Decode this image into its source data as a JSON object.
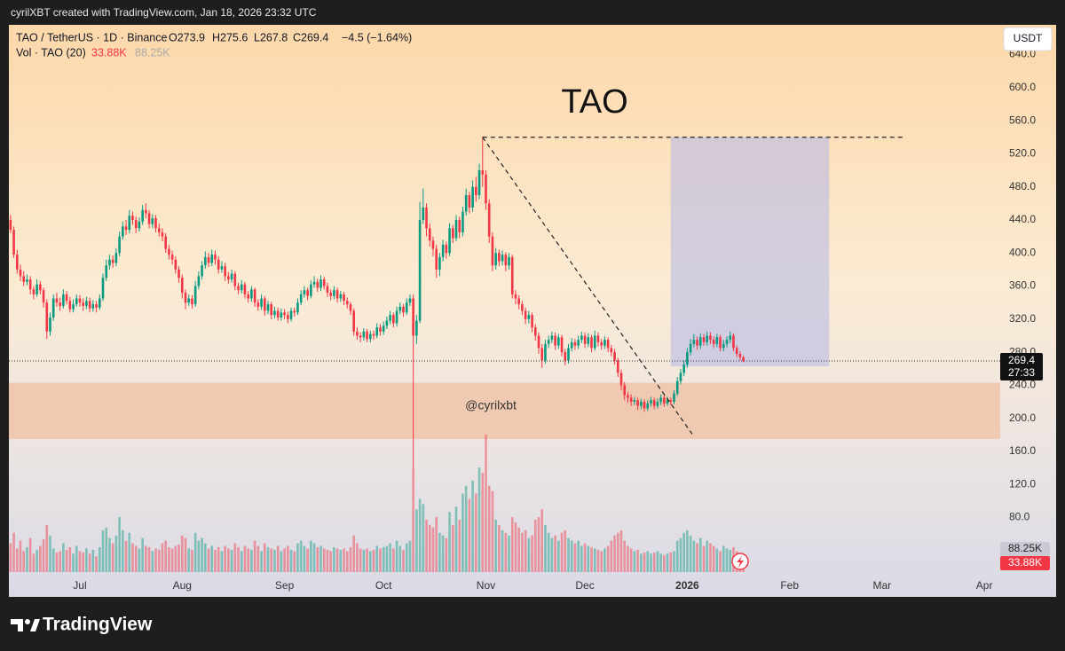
{
  "header": "cyrilXBT created with TradingView.com, Jan 18, 2026 23:32 UTC",
  "footer": "TradingView",
  "chart_data": {
    "type": "candlestick",
    "title": "TAO",
    "symbol": "TAO / TetherUS · 1D · Binance",
    "ohlc_labels": [
      "O273.9",
      "H275.6",
      "L267.8",
      "C269.4",
      "−4.5 (−1.64%)"
    ],
    "volume_title": "Vol · TAO (20)",
    "volume_ma": 88.25,
    "volume_ma_label": "88.25K",
    "volume_last_label": "33.88K",
    "watermark": "@cyrilxbt",
    "currency": "USDT",
    "countdown": "27:33",
    "up_color": "#089981",
    "down_color": "#f23645",
    "grid": false,
    "x": [
      -21,
      -20,
      -19,
      -18,
      -17,
      -16,
      -15,
      -14,
      -13,
      -12,
      -11,
      -10,
      -9,
      -8,
      -7,
      -6,
      -5,
      -4,
      -3,
      -2,
      -1,
      0,
      1,
      2,
      3,
      4,
      5,
      6,
      7,
      8,
      9,
      10,
      11,
      12,
      13,
      14,
      15,
      16,
      17,
      18,
      19,
      20,
      21,
      22,
      23,
      24,
      25,
      26,
      27,
      28,
      29,
      30,
      31,
      32,
      33,
      34,
      35,
      36,
      37,
      38,
      39,
      40,
      41,
      42,
      43,
      44,
      45,
      46,
      47,
      48,
      49,
      50,
      51,
      52,
      53,
      54,
      55,
      56,
      57,
      58,
      59,
      60,
      61,
      62,
      63,
      64,
      65,
      66,
      67,
      68,
      69,
      70,
      71,
      72,
      73,
      74,
      75,
      76,
      77,
      78,
      79,
      80,
      81,
      82,
      83,
      84,
      85,
      86,
      87,
      88,
      89,
      90,
      91,
      92,
      93,
      94,
      95,
      96,
      97,
      98,
      99,
      100,
      101,
      102,
      103,
      104,
      105,
      106,
      107,
      108,
      109,
      110,
      111,
      112,
      113,
      114,
      115,
      116,
      117,
      118,
      119,
      120,
      121,
      122,
      123,
      124,
      125,
      126,
      127,
      128,
      129,
      130,
      131,
      132,
      133,
      134,
      135,
      136,
      137,
      138,
      139,
      140,
      141,
      142,
      143,
      144,
      145,
      146,
      147,
      148,
      149,
      150,
      151,
      152,
      153,
      154,
      155,
      156,
      157,
      158,
      159,
      160,
      161,
      162,
      163,
      164,
      165,
      166,
      167,
      168,
      169,
      170,
      171,
      172,
      173,
      174,
      175,
      176,
      177,
      178,
      179,
      180,
      181,
      182,
      183,
      184,
      185,
      186,
      187,
      188,
      189,
      190,
      191,
      192,
      193,
      194,
      195,
      196,
      197,
      198,
      199,
      200,
      201
    ],
    "open": [
      440,
      428,
      398,
      380,
      372,
      365,
      368,
      356,
      350,
      362,
      355,
      340,
      305,
      322,
      345,
      340,
      336,
      350,
      342,
      332,
      338,
      345,
      340,
      336,
      342,
      333,
      338,
      334,
      345,
      370,
      385,
      392,
      388,
      400,
      420,
      432,
      428,
      445,
      440,
      430,
      438,
      452,
      448,
      435,
      442,
      430,
      425,
      420,
      405,
      398,
      392,
      380,
      370,
      352,
      340,
      345,
      338,
      360,
      372,
      385,
      395,
      388,
      398,
      392,
      380,
      384,
      372,
      368,
      375,
      360,
      355,
      362,
      350,
      345,
      356,
      340,
      335,
      345,
      330,
      338,
      325,
      330,
      322,
      328,
      325,
      320,
      330,
      328,
      340,
      350,
      355,
      348,
      362,
      365,
      358,
      368,
      360,
      352,
      348,
      355,
      345,
      350,
      342,
      338,
      330,
      305,
      300,
      298,
      305,
      296,
      302,
      300,
      310,
      305,
      312,
      318,
      325,
      315,
      330,
      335,
      328,
      340,
      345,
      300,
      318,
      440,
      455,
      430,
      415,
      405,
      380,
      395,
      410,
      400,
      430,
      418,
      440,
      425,
      450,
      470,
      455,
      480,
      470,
      500,
      495,
      460,
      420,
      385,
      400,
      390,
      398,
      385,
      395,
      350,
      345,
      338,
      330,
      320,
      325,
      310,
      300,
      285,
      270,
      290,
      295,
      300,
      288,
      298,
      280,
      270,
      285,
      292,
      288,
      295,
      300,
      290,
      298,
      285,
      300,
      292,
      288,
      295,
      285,
      280,
      270,
      255,
      240,
      228,
      225,
      220,
      222,
      215,
      220,
      212,
      218,
      222,
      215,
      220,
      225,
      218,
      222,
      220,
      230,
      245,
      255,
      265,
      280,
      290,
      295,
      288,
      298,
      292,
      300,
      295,
      290,
      298,
      285,
      290,
      295,
      300,
      285,
      278,
      273.9
    ],
    "high": [
      446,
      432,
      404,
      386,
      378,
      374,
      372,
      360,
      368,
      366,
      358,
      344,
      328,
      350,
      352,
      346,
      356,
      354,
      347,
      344,
      350,
      349,
      345,
      347,
      346,
      343,
      342,
      350,
      375,
      392,
      398,
      397,
      406,
      426,
      438,
      440,
      452,
      450,
      444,
      443,
      458,
      460,
      452,
      447,
      446,
      436,
      430,
      424,
      410,
      403,
      396,
      384,
      374,
      356,
      350,
      349,
      366,
      378,
      390,
      402,
      400,
      404,
      403,
      396,
      390,
      388,
      377,
      380,
      378,
      364,
      367,
      365,
      354,
      360,
      358,
      344,
      350,
      348,
      342,
      341,
      335,
      334,
      333,
      332,
      329,
      334,
      334,
      345,
      355,
      360,
      358,
      367,
      372,
      369,
      373,
      371,
      364,
      356,
      360,
      358,
      354,
      353,
      346,
      341,
      333,
      310,
      304,
      309,
      308,
      306,
      306,
      315,
      314,
      317,
      323,
      330,
      328,
      335,
      340,
      338,
      345,
      350,
      350,
      325,
      462,
      478,
      460,
      436,
      420,
      410,
      400,
      416,
      414,
      436,
      434,
      446,
      444,
      456,
      478,
      474,
      488,
      492,
      508,
      540,
      500,
      465,
      425,
      406,
      404,
      403,
      401,
      400,
      398,
      355,
      349,
      342,
      334,
      330,
      328,
      314,
      304,
      290,
      295,
      300,
      305,
      304,
      302,
      301,
      284,
      290,
      297,
      296,
      300,
      305,
      304,
      303,
      301,
      306,
      304,
      296,
      299,
      298,
      289,
      284,
      273,
      259,
      244,
      232,
      229,
      226,
      225,
      224,
      223,
      222,
      226,
      225,
      224,
      229,
      228,
      226,
      225,
      234,
      250,
      260,
      270,
      285,
      296,
      302,
      299,
      303,
      302,
      305,
      304,
      299,
      302,
      301,
      295,
      299,
      305,
      303,
      288,
      281,
      275.6
    ],
    "low": [
      424,
      394,
      375,
      366,
      360,
      361,
      350,
      344,
      347,
      350,
      334,
      296,
      300,
      318,
      335,
      330,
      333,
      338,
      328,
      328,
      335,
      335,
      330,
      332,
      328,
      329,
      328,
      331,
      342,
      366,
      380,
      382,
      384,
      396,
      416,
      422,
      424,
      434,
      424,
      426,
      434,
      442,
      430,
      430,
      425,
      420,
      414,
      400,
      392,
      386,
      375,
      364,
      345,
      332,
      336,
      333,
      335,
      356,
      368,
      381,
      383,
      384,
      386,
      375,
      376,
      366,
      363,
      364,
      355,
      350,
      351,
      345,
      340,
      341,
      335,
      330,
      331,
      324,
      326,
      320,
      321,
      318,
      318,
      320,
      315,
      317,
      323,
      325,
      337,
      346,
      343,
      345,
      358,
      353,
      354,
      356,
      347,
      343,
      344,
      340,
      341,
      337,
      333,
      325,
      300,
      295,
      292,
      294,
      292,
      292,
      295,
      297,
      300,
      301,
      308,
      314,
      310,
      311,
      326,
      323,
      325,
      336,
      140,
      290,
      315,
      435,
      420,
      408,
      396,
      370,
      372,
      390,
      393,
      396,
      412,
      414,
      418,
      420,
      445,
      448,
      450,
      462,
      465,
      480,
      452,
      412,
      378,
      380,
      384,
      385,
      378,
      380,
      345,
      338,
      332,
      325,
      314,
      315,
      304,
      294,
      278,
      261,
      266,
      285,
      291,
      283,
      284,
      275,
      264,
      266,
      281,
      283,
      284,
      291,
      285,
      286,
      280,
      282,
      287,
      283,
      284,
      280,
      275,
      265,
      250,
      234,
      222,
      219,
      215,
      216,
      210,
      211,
      208,
      209,
      214,
      211,
      212,
      216,
      214,
      215,
      216,
      217,
      227,
      241,
      251,
      261,
      276,
      286,
      283,
      284,
      288,
      288,
      290,
      285,
      286,
      281,
      281,
      286,
      291,
      281,
      274,
      270,
      267.8
    ],
    "close": [
      428,
      398,
      380,
      372,
      365,
      368,
      356,
      350,
      362,
      355,
      340,
      305,
      322,
      345,
      340,
      336,
      350,
      342,
      332,
      338,
      345,
      340,
      336,
      342,
      333,
      338,
      334,
      345,
      370,
      385,
      392,
      388,
      400,
      420,
      432,
      428,
      445,
      440,
      430,
      438,
      452,
      448,
      435,
      442,
      430,
      425,
      420,
      405,
      398,
      392,
      380,
      370,
      352,
      340,
      345,
      338,
      360,
      372,
      385,
      395,
      388,
      398,
      392,
      380,
      384,
      372,
      368,
      375,
      360,
      355,
      362,
      350,
      345,
      356,
      340,
      335,
      345,
      330,
      338,
      325,
      330,
      322,
      328,
      325,
      320,
      330,
      328,
      340,
      350,
      355,
      348,
      362,
      365,
      358,
      368,
      360,
      352,
      348,
      355,
      345,
      350,
      342,
      338,
      330,
      305,
      300,
      298,
      305,
      296,
      302,
      300,
      310,
      305,
      312,
      318,
      325,
      315,
      330,
      335,
      328,
      340,
      345,
      300,
      318,
      440,
      455,
      430,
      415,
      405,
      380,
      395,
      410,
      400,
      430,
      418,
      440,
      425,
      450,
      470,
      455,
      480,
      470,
      500,
      495,
      460,
      420,
      385,
      400,
      390,
      398,
      385,
      395,
      350,
      345,
      338,
      330,
      320,
      325,
      310,
      300,
      285,
      270,
      290,
      295,
      300,
      288,
      298,
      280,
      270,
      285,
      292,
      288,
      295,
      300,
      290,
      298,
      285,
      300,
      292,
      288,
      295,
      285,
      280,
      270,
      255,
      240,
      228,
      225,
      220,
      222,
      215,
      220,
      212,
      218,
      222,
      215,
      220,
      225,
      218,
      222,
      220,
      230,
      245,
      255,
      265,
      280,
      290,
      295,
      288,
      298,
      292,
      300,
      295,
      290,
      298,
      285,
      290,
      295,
      300,
      285,
      278,
      273.9,
      269.4
    ],
    "volume": [
      110,
      150,
      90,
      120,
      80,
      95,
      130,
      70,
      85,
      100,
      125,
      180,
      140,
      90,
      75,
      80,
      110,
      85,
      95,
      70,
      100,
      80,
      75,
      90,
      70,
      85,
      60,
      95,
      160,
      170,
      130,
      110,
      140,
      210,
      160,
      120,
      150,
      110,
      100,
      90,
      130,
      100,
      95,
      80,
      90,
      85,
      110,
      120,
      95,
      90,
      100,
      105,
      140,
      130,
      90,
      85,
      150,
      120,
      130,
      110,
      90,
      100,
      85,
      95,
      80,
      100,
      90,
      85,
      110,
      95,
      80,
      100,
      90,
      85,
      120,
      100,
      80,
      110,
      95,
      90,
      85,
      100,
      80,
      90,
      100,
      85,
      80,
      110,
      120,
      100,
      90,
      120,
      110,
      95,
      100,
      90,
      85,
      80,
      95,
      90,
      85,
      90,
      80,
      95,
      140,
      110,
      90,
      85,
      90,
      80,
      85,
      100,
      90,
      95,
      100,
      110,
      90,
      120,
      100,
      85,
      110,
      120,
      397,
      240,
      280,
      260,
      200,
      180,
      170,
      210,
      150,
      140,
      130,
      230,
      180,
      250,
      200,
      300,
      330,
      280,
      350,
      300,
      400,
      380,
      525,
      330,
      310,
      200,
      180,
      160,
      150,
      140,
      210,
      190,
      170,
      150,
      160,
      130,
      140,
      200,
      210,
      240,
      180,
      150,
      130,
      140,
      120,
      150,
      160,
      130,
      120,
      110,
      120,
      100,
      110,
      100,
      95,
      90,
      85,
      80,
      90,
      100,
      120,
      140,
      150,
      160,
      120,
      100,
      90,
      80,
      85,
      70,
      75,
      80,
      70,
      75,
      80,
      70,
      65,
      70,
      75,
      80,
      120,
      130,
      150,
      160,
      140,
      120,
      110,
      130,
      100,
      120,
      110,
      100,
      90,
      80,
      100,
      90,
      85,
      95,
      80,
      60,
      33.88
    ],
    "xlim": [
      -21.5,
      278.8
    ],
    "xticks": [
      {
        "value": 0,
        "label": "Jul"
      },
      {
        "value": 31,
        "label": "Aug"
      },
      {
        "value": 62,
        "label": "Sep"
      },
      {
        "value": 92,
        "label": "Oct"
      },
      {
        "value": 123,
        "label": "Nov"
      },
      {
        "value": 153,
        "label": "Dec"
      },
      {
        "value": 184,
        "label": "2026"
      },
      {
        "value": 215,
        "label": "Feb"
      },
      {
        "value": 243,
        "label": "Mar"
      },
      {
        "value": 274,
        "label": "Apr"
      }
    ],
    "ylim": [
      -16,
      676
    ],
    "yticks": [
      {
        "value": 80,
        "label": "80.0"
      },
      {
        "value": 120,
        "label": "120.0"
      },
      {
        "value": 160,
        "label": "160.0"
      },
      {
        "value": 200,
        "label": "200.0"
      },
      {
        "value": 240,
        "label": "240.0"
      },
      {
        "value": 280,
        "label": "280.0"
      },
      {
        "value": 320,
        "label": "320.0"
      },
      {
        "value": 360,
        "label": "360.0"
      },
      {
        "value": 400,
        "label": "400.0"
      },
      {
        "value": 440,
        "label": "440.0"
      },
      {
        "value": 480,
        "label": "480.0"
      },
      {
        "value": 520,
        "label": "520.0"
      },
      {
        "value": 560,
        "label": "560.0"
      },
      {
        "value": 600,
        "label": "600.0"
      },
      {
        "value": 640,
        "label": "640.0"
      }
    ],
    "volume_ylim": [
      0,
      1977
    ],
    "drawings": {
      "target_line": {
        "price": 540,
        "x": [
          122,
          250
        ]
      },
      "trend_line": {
        "x": [
          122,
          185.5
        ],
        "price": [
          540,
          181
        ]
      },
      "target_box": {
        "x": [
          179,
          227
        ],
        "price": [
          263,
          540
        ],
        "color": "#b3b6e8"
      },
      "support_zone": {
        "price": [
          175,
          243
        ],
        "color": "#f0c2a6"
      }
    }
  }
}
